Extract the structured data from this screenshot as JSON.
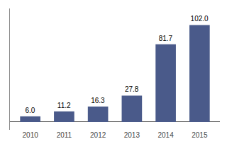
{
  "chart_data": {
    "type": "bar",
    "categories": [
      "2010",
      "2011",
      "2012",
      "2013",
      "2014",
      "2015"
    ],
    "values": [
      6.0,
      11.2,
      16.3,
      27.8,
      81.7,
      102.0
    ],
    "value_labels": [
      "6.0",
      "11.2",
      "16.3",
      "27.8",
      "81.7",
      "102.0"
    ],
    "data_labels": true,
    "color": "#4a5a8a",
    "ylim": [
      -8.16,
      119.34
    ],
    "tick_labels": "x",
    "grid": false
  }
}
